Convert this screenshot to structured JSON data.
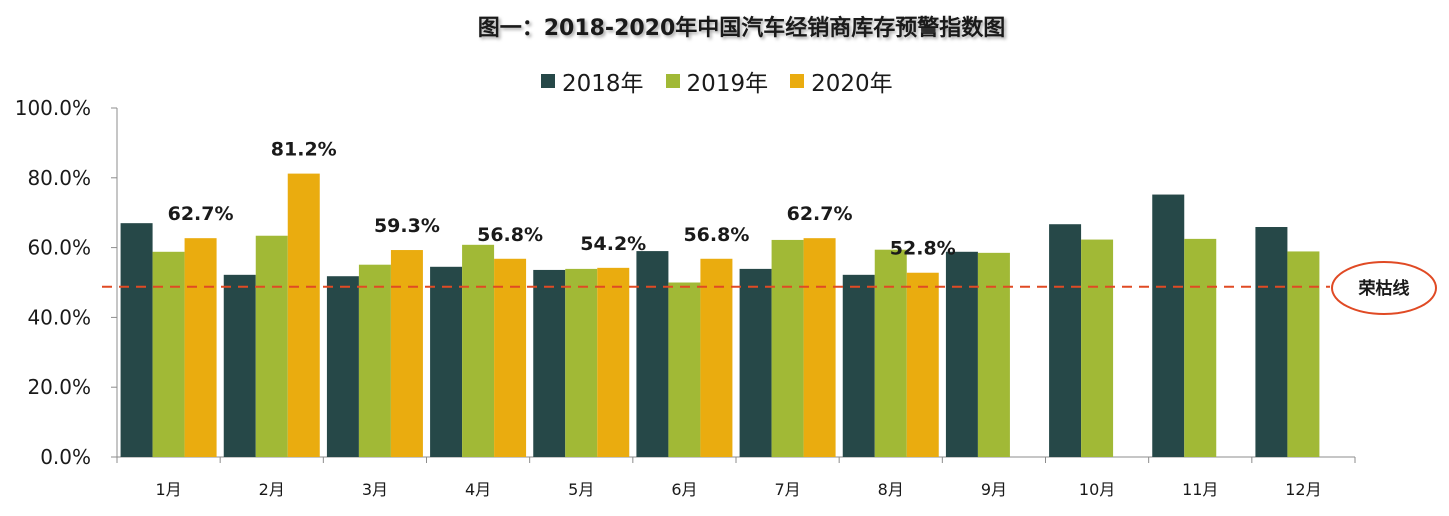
{
  "chart_data": {
    "type": "bar",
    "title": "图一：2018-2020年中国汽车经销商库存预警指数图",
    "xlabel": "",
    "ylabel": "",
    "ylim": [
      0,
      100
    ],
    "yticks": [
      "0.0%",
      "20.0%",
      "40.0%",
      "60.0%",
      "80.0%",
      "100.0%"
    ],
    "categories": [
      "1月",
      "2月",
      "3月",
      "4月",
      "5月",
      "6月",
      "7月",
      "8月",
      "9月",
      "10月",
      "11月",
      "12月"
    ],
    "series": [
      {
        "name": "2018年",
        "color": "#264848",
        "values": [
          67.0,
          52.2,
          51.8,
          54.5,
          53.6,
          59.0,
          53.9,
          52.2,
          58.8,
          66.7,
          75.2,
          65.9
        ]
      },
      {
        "name": "2019年",
        "color": "#A1B936",
        "values": [
          58.8,
          63.4,
          55.1,
          60.8,
          53.9,
          50.0,
          62.2,
          59.4,
          58.5,
          62.3,
          62.5,
          58.9
        ]
      },
      {
        "name": "2020年",
        "color": "#EAAC0F",
        "values": [
          62.7,
          81.2,
          59.3,
          56.8,
          54.2,
          56.8,
          62.7,
          52.8,
          null,
          null,
          null,
          null
        ]
      }
    ],
    "data_labels": [
      "62.7%",
      "81.2%",
      "59.3%",
      "56.8%",
      "54.2%",
      "56.8%",
      "62.7%",
      "52.8%"
    ],
    "reference_line": {
      "label": "荣枯线",
      "value": 48.8,
      "color": "#E04A24"
    },
    "legend_position": "top",
    "grid": false
  }
}
